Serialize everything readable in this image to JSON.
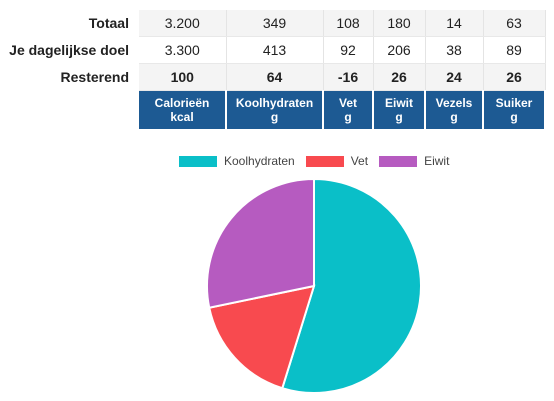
{
  "rows": [
    {
      "label": "Totaal",
      "values": [
        "3.200",
        "349",
        "108",
        "180",
        "14",
        "63"
      ]
    },
    {
      "label": "Je dagelijkse doel",
      "values": [
        "3.300",
        "413",
        "92",
        "206",
        "38",
        "89"
      ]
    },
    {
      "label": "Resterend",
      "values": [
        "100",
        "64",
        "-16",
        "26",
        "24",
        "26"
      ]
    }
  ],
  "columns": [
    {
      "name": "Calorieën",
      "unit": "kcal"
    },
    {
      "name": "Koolhydraten",
      "unit": "g"
    },
    {
      "name": "Vet",
      "unit": "g"
    },
    {
      "name": "Eiwit",
      "unit": "g"
    },
    {
      "name": "Vezels",
      "unit": "g"
    },
    {
      "name": "Suiker",
      "unit": "g"
    }
  ],
  "colors": {
    "header_bg": "#1d5a93",
    "positive": "#1f8a1f",
    "negative": "#e00000",
    "koolhydraten": "#0abfc8",
    "vet": "#f84a4f",
    "eiwit": "#b65bc0"
  },
  "chart_data": {
    "type": "pie",
    "labels": [
      "Koolhydraten",
      "Vet",
      "Eiwit"
    ],
    "values": [
      349,
      108,
      180
    ],
    "colors": [
      "#0abfc8",
      "#f84a4f",
      "#b65bc0"
    ],
    "legend_position": "top"
  }
}
